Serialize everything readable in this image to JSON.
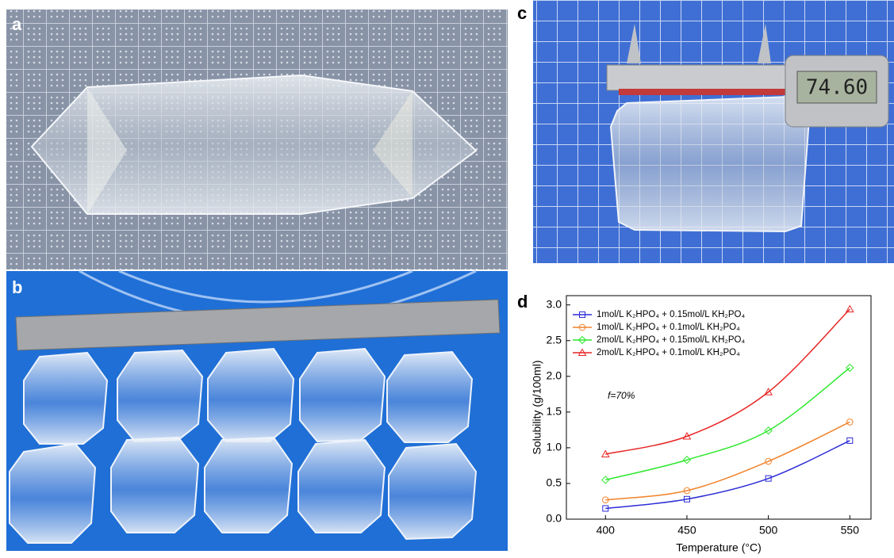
{
  "panels": {
    "a": "a",
    "b": "b",
    "c": "c",
    "d": "d"
  },
  "caliper_reading": "74.60",
  "chart_data": {
    "type": "line",
    "x_label": "Temperature (°C)",
    "y_label": "Solubility (g/100ml)",
    "annotation": "f=70%",
    "x": [
      400,
      450,
      500,
      550
    ],
    "series": [
      {
        "name": "1mol/L K₂HPO₄ + 0.15mol/L KH₂PO₄",
        "color": "#2b2bd6",
        "marker": "square",
        "values": [
          0.15,
          0.28,
          0.57,
          1.1
        ]
      },
      {
        "name": "1mol/L K₂HPO₄ + 0.1mol/L KH₂PO₄",
        "color": "#f0822a",
        "marker": "circle",
        "values": [
          0.27,
          0.4,
          0.81,
          1.36
        ]
      },
      {
        "name": "2mol/L K₂HPO₄ + 0.15mol/L KH₂PO₄",
        "color": "#2de82d",
        "marker": "diamond",
        "values": [
          0.55,
          0.83,
          1.24,
          2.12
        ]
      },
      {
        "name": "2mol/L K₂HPO₄ + 0.1mol/L KH₂PO₄",
        "color": "#e82424",
        "marker": "triangle",
        "values": [
          0.91,
          1.16,
          1.78,
          2.94
        ]
      }
    ],
    "xlim": [
      376,
      563
    ],
    "ylim": [
      0,
      3.13
    ],
    "xticks": [
      400,
      450,
      500,
      550
    ],
    "yticks": [
      {
        "value": 0,
        "label": "0.0"
      },
      0.5,
      {
        "value": 1,
        "label": "1.0"
      },
      1.5,
      {
        "value": 2,
        "label": "2.0"
      },
      2.5,
      {
        "value": 3,
        "label": "3.0"
      }
    ],
    "legend": "upper-left"
  }
}
